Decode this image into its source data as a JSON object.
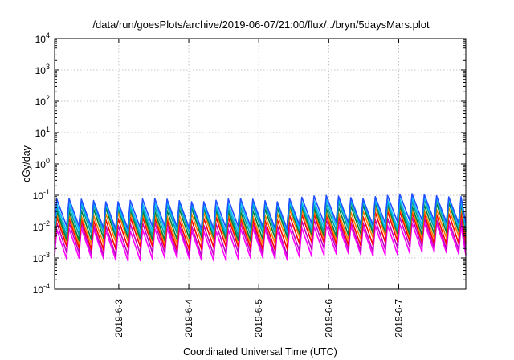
{
  "chart_data": {
    "type": "line",
    "title": "/data/run/goesPlots/archive/2019-06-07/21:00/flux/../bryn/5daysMars.plot",
    "xlabel": "Coordinated Universal Time (UTC)",
    "ylabel": "cGy/day",
    "yscale": "log",
    "ylim": [
      0.0001,
      10000
    ],
    "xlim": [
      "2019-06-02 02:00",
      "2019-06-07 23:00"
    ],
    "grid": true,
    "legend": "none",
    "y_ticks": [
      {
        "value": 0.0001,
        "base": "10",
        "exp": "-4"
      },
      {
        "value": 0.001,
        "base": "10",
        "exp": "-3"
      },
      {
        "value": 0.01,
        "base": "10",
        "exp": "-2"
      },
      {
        "value": 0.1,
        "base": "10",
        "exp": "-1"
      },
      {
        "value": 1,
        "base": "10",
        "exp": "0"
      },
      {
        "value": 10,
        "base": "10",
        "exp": "1"
      },
      {
        "value": 100,
        "base": "10",
        "exp": "2"
      },
      {
        "value": 1000,
        "base": "10",
        "exp": "3"
      },
      {
        "value": 10000,
        "base": "10",
        "exp": "4"
      }
    ],
    "x_ticks": [
      {
        "value": "2019-06-03",
        "label": "2019-6-3"
      },
      {
        "value": "2019-06-04",
        "label": "2019-6-4"
      },
      {
        "value": "2019-06-05",
        "label": "2019-6-5"
      },
      {
        "value": "2019-06-06",
        "label": "2019-6-6"
      },
      {
        "value": "2019-06-07",
        "label": "2019-6-7"
      }
    ],
    "oscillation": {
      "period_hours": 4.2,
      "level_shift_time": "2019-06-05 08:00",
      "late_shift_time": "2019-06-06 14:00"
    },
    "series": [
      {
        "color": "#ff00ff",
        "peak": 0.008,
        "trough": 0.0009,
        "later_peak": 0.012,
        "later_trough": 0.0014
      },
      {
        "color": "#c000c0",
        "peak": 0.012,
        "trough": 0.0013,
        "later_peak": 0.018,
        "later_trough": 0.002
      },
      {
        "color": "#ff0000",
        "peak": 0.018,
        "trough": 0.002,
        "later_peak": 0.028,
        "later_trough": 0.003
      },
      {
        "color": "#ff8000",
        "peak": 0.025,
        "trough": 0.003,
        "later_peak": 0.038,
        "later_trough": 0.0045
      },
      {
        "color": "#008040",
        "peak": 0.035,
        "trough": 0.004,
        "later_peak": 0.052,
        "later_trough": 0.006
      },
      {
        "color": "#00a0a0",
        "peak": 0.045,
        "trough": 0.0055,
        "later_peak": 0.068,
        "later_trough": 0.008
      },
      {
        "color": "#00c0ff",
        "peak": 0.055,
        "trough": 0.007,
        "later_peak": 0.08,
        "later_trough": 0.01
      },
      {
        "color": "#2050ff",
        "peak": 0.07,
        "trough": 0.009,
        "later_peak": 0.1,
        "later_trough": 0.014
      }
    ]
  }
}
